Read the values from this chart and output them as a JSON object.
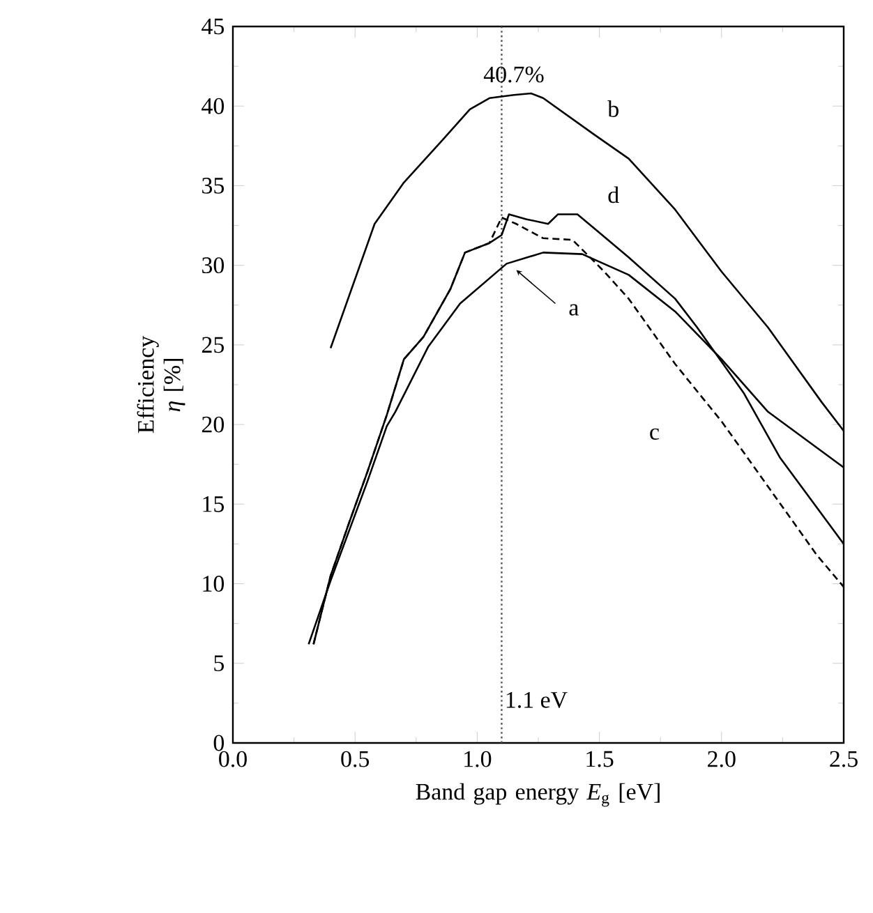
{
  "chart_data": {
    "type": "line",
    "xlabel": "Band gap energy *E*$_{g}$ [eV]",
    "ylabel": "Efficiency *η* [%]",
    "xlim": [
      0,
      2.5
    ],
    "ylim": [
      0,
      45
    ],
    "xticks": [
      {
        "value": 0,
        "label": "0.0"
      },
      {
        "value": 0.5,
        "label": "0.5"
      },
      {
        "value": 1,
        "label": "1.0"
      },
      {
        "value": 1.5,
        "label": "1.5"
      },
      {
        "value": 2,
        "label": "2.0"
      },
      {
        "value": 2.5,
        "label": "2.5"
      }
    ],
    "yticks": [
      0,
      5,
      10,
      15,
      20,
      25,
      30,
      35,
      40,
      45
    ],
    "grid": false,
    "marker": "none",
    "series": [
      {
        "name": "a",
        "color": "#000000",
        "line_style": "solid",
        "x": [
          0.31,
          0.4,
          0.475,
          0.55,
          0.63,
          0.665,
          0.8,
          0.93,
          1.12,
          1.27,
          1.43,
          1.62,
          1.81,
          2.0,
          2.19,
          2.5
        ],
        "values": [
          6.2,
          10.2,
          13.3,
          16.4,
          19.9,
          20.8,
          24.9,
          27.6,
          30.1,
          30.8,
          30.7,
          29.4,
          27.1,
          24.1,
          20.8,
          17.3
        ]
      },
      {
        "name": "b",
        "color": "#000000",
        "line_style": "solid",
        "x": [
          0.4,
          0.58,
          0.7,
          0.86,
          0.97,
          1.05,
          1.15,
          1.22,
          1.27,
          1.48,
          1.62,
          1.81,
          2.0,
          2.19,
          2.41,
          2.5
        ],
        "values": [
          24.8,
          32.6,
          35.2,
          37.9,
          39.8,
          40.5,
          40.7,
          40.8,
          40.5,
          38.2,
          36.7,
          33.5,
          29.6,
          26.1,
          21.4,
          19.6
        ]
      },
      {
        "name": "c",
        "color": "#000000",
        "line_style": "dashed",
        "x": [
          0.33,
          0.4,
          0.475,
          0.55,
          0.63,
          0.7,
          0.78,
          0.89,
          0.95,
          1.05,
          1.1,
          1.16,
          1.27,
          1.39,
          1.52,
          1.62,
          1.81,
          2.0,
          2.39,
          2.5
        ],
        "values": [
          6.2,
          10.5,
          13.8,
          17.0,
          20.6,
          24.1,
          25.5,
          28.5,
          30.8,
          31.4,
          33.0,
          32.6,
          31.7,
          31.6,
          29.6,
          27.9,
          23.8,
          20.2,
          11.8,
          9.8
        ]
      },
      {
        "name": "d",
        "color": "#000000",
        "line_style": "solid",
        "x": [
          0.33,
          0.4,
          0.475,
          0.55,
          0.63,
          0.7,
          0.78,
          0.89,
          0.95,
          1.05,
          1.1,
          1.13,
          1.2,
          1.29,
          1.33,
          1.41,
          1.48,
          1.62,
          1.81,
          1.9,
          2.09,
          2.24,
          2.5
        ],
        "values": [
          6.2,
          10.5,
          13.8,
          17.0,
          20.6,
          24.1,
          25.5,
          28.5,
          30.8,
          31.4,
          31.9,
          33.2,
          32.9,
          32.6,
          33.2,
          33.2,
          32.3,
          30.5,
          27.9,
          26.1,
          22.0,
          17.9,
          12.5
        ]
      }
    ],
    "ref_lines": [
      {
        "axis": "x",
        "value": 1.1,
        "label": "1.1 eV",
        "line_style": "dotted",
        "color": "#555555"
      }
    ],
    "annotations": [
      {
        "text": "40.7%",
        "x": 1.15,
        "y": 40.7
      }
    ]
  }
}
